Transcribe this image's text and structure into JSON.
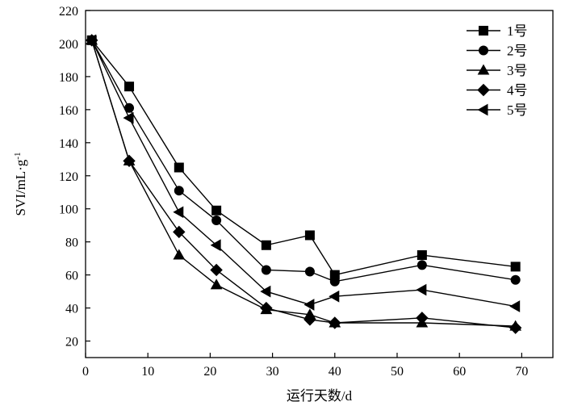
{
  "chart_data": {
    "type": "line",
    "xlabel": "运行天数/d",
    "ylabel": "SVI/mL·g",
    "ylabel_sup": "-1",
    "xlim": [
      0,
      75
    ],
    "ylim": [
      10,
      220
    ],
    "xticks": [
      0,
      10,
      20,
      30,
      40,
      50,
      60,
      70
    ],
    "yticks": [
      20,
      40,
      60,
      80,
      100,
      120,
      140,
      160,
      180,
      200,
      220
    ],
    "grid": false,
    "legend_position": "top-right",
    "series": [
      {
        "name": "1号",
        "marker": "square",
        "x": [
          1,
          7,
          15,
          21,
          29,
          36,
          40,
          54,
          69
        ],
        "y": [
          202,
          174,
          125,
          99,
          78,
          84,
          60,
          72,
          65
        ]
      },
      {
        "name": "2号",
        "marker": "circle",
        "x": [
          1,
          7,
          15,
          21,
          29,
          36,
          40,
          54,
          69
        ],
        "y": [
          202,
          161,
          111,
          93,
          63,
          62,
          56,
          66,
          57
        ]
      },
      {
        "name": "3号",
        "marker": "triangle-up",
        "x": [
          1,
          7,
          15,
          21,
          29,
          36,
          40,
          54,
          69
        ],
        "y": [
          202,
          129,
          72,
          54,
          39,
          36,
          31,
          31,
          29
        ]
      },
      {
        "name": "4号",
        "marker": "diamond",
        "x": [
          1,
          7,
          15,
          21,
          29,
          36,
          40,
          54,
          69
        ],
        "y": [
          202,
          129,
          86,
          63,
          40,
          33,
          31,
          34,
          28
        ]
      },
      {
        "name": "5号",
        "marker": "triangle-left",
        "x": [
          1,
          7,
          15,
          21,
          29,
          36,
          40,
          54,
          69
        ],
        "y": [
          202,
          155,
          98,
          78,
          50,
          42,
          47,
          51,
          41
        ]
      }
    ]
  }
}
